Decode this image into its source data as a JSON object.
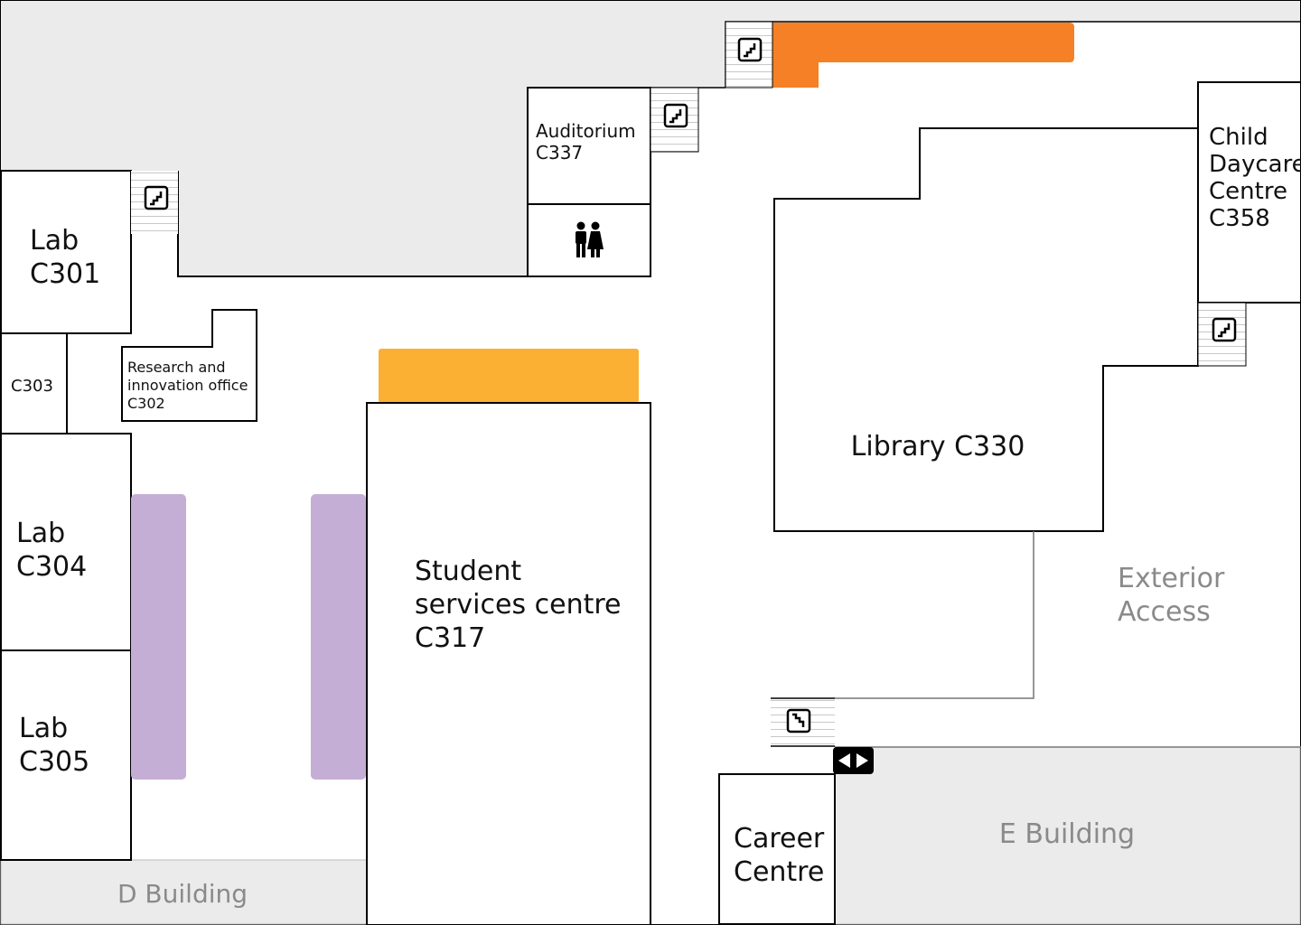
{
  "rooms": {
    "lab_c301": [
      "Lab",
      "C301"
    ],
    "c303": "C303",
    "research_office": [
      "Research and",
      "innovation office",
      "C302"
    ],
    "lab_c304": [
      "Lab",
      "C304"
    ],
    "lab_c305": [
      "Lab",
      "C305"
    ],
    "auditorium": [
      "Auditorium",
      "C337"
    ],
    "student_services": [
      "Student",
      "services centre",
      "C317"
    ],
    "library": "Library C330",
    "child_daycare": [
      "Child",
      "Daycare",
      "Centre",
      "C358"
    ],
    "career_centre": [
      "Career",
      "Centre"
    ]
  },
  "areas": {
    "exterior_access": [
      "Exterior",
      "Access"
    ],
    "d_building": "D Building",
    "e_building": "E Building"
  },
  "icons": {
    "stairs": "stairs-icon",
    "restroom": "restroom-icon",
    "transfer": "left-right-arrows-icon"
  },
  "colors": {
    "orange": "#f58025",
    "yellow": "#fbb034",
    "purple": "#c5aed5",
    "exterior": "#ebebeb"
  }
}
